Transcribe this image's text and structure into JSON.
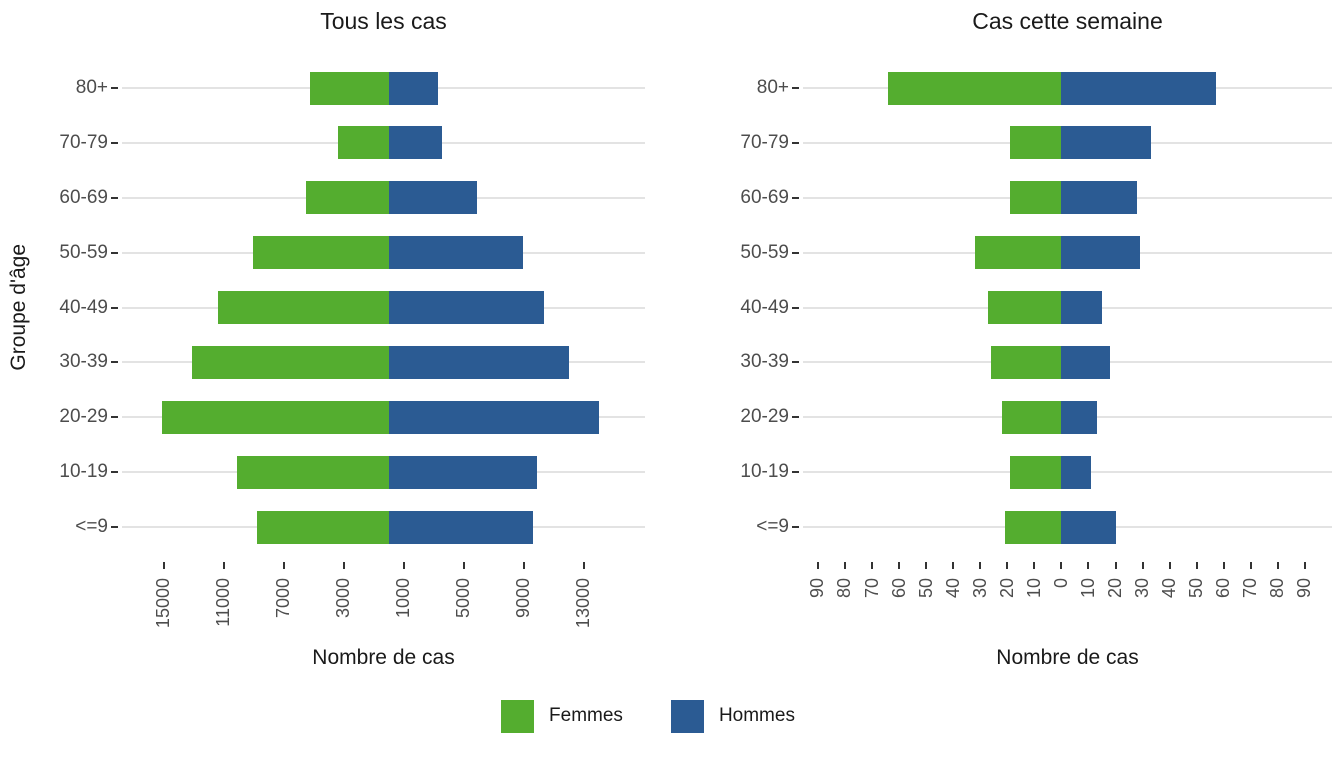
{
  "yaxis_title": "Groupe d'âge",
  "legend": {
    "items": [
      {
        "label": "Femmes",
        "color": "#54AD2F"
      },
      {
        "label": "Hommes",
        "color": "#2B5B93"
      }
    ]
  },
  "chart_data": [
    {
      "type": "bar",
      "subtype": "population-pyramid-horizontal",
      "title": "Tous les cas",
      "xlabel": "Nombre de cas",
      "ylabel": "Groupe d'âge",
      "grid": "horizontal-major-only",
      "legend_position": "bottom-shared",
      "categories": [
        "80+",
        "70-79",
        "60-69",
        "50-59",
        "40-49",
        "30-39",
        "20-29",
        "10-19",
        "<=9"
      ],
      "series": [
        {
          "name": "Femmes",
          "side": "left",
          "color": "#54AD2F",
          "values": [
            5250,
            3400,
            5500,
            9050,
            11400,
            13150,
            15150,
            10150,
            8800
          ]
        },
        {
          "name": "Hommes",
          "side": "right",
          "color": "#2B5B93",
          "values": [
            3300,
            3550,
            5900,
            8950,
            10350,
            12000,
            14050,
            9900,
            9600
          ]
        }
      ],
      "xlim": [
        -17800,
        17100
      ],
      "x_ticks": [
        {
          "value": -15000,
          "label": "15000"
        },
        {
          "value": -11000,
          "label": "11000"
        },
        {
          "value": -7000,
          "label": "7000"
        },
        {
          "value": -3000,
          "label": "3000"
        },
        {
          "value": 1000,
          "label": "1000"
        },
        {
          "value": 5000,
          "label": "5000"
        },
        {
          "value": 9000,
          "label": "9000"
        },
        {
          "value": 13000,
          "label": "13000"
        }
      ]
    },
    {
      "type": "bar",
      "subtype": "population-pyramid-horizontal",
      "title": "Cas cette semaine",
      "xlabel": "Nombre de cas",
      "ylabel": "Groupe d'âge",
      "grid": "horizontal-major-only",
      "legend_position": "bottom-shared",
      "categories": [
        "80+",
        "70-79",
        "60-69",
        "50-59",
        "40-49",
        "30-39",
        "20-29",
        "10-19",
        "<=9"
      ],
      "series": [
        {
          "name": "Femmes",
          "side": "left",
          "color": "#54AD2F",
          "values": [
            64,
            19,
            19,
            32,
            27,
            26,
            22,
            19,
            21
          ]
        },
        {
          "name": "Hommes",
          "side": "right",
          "color": "#2B5B93",
          "values": [
            57,
            33,
            28,
            29,
            15,
            18,
            13,
            11,
            20
          ]
        }
      ],
      "xlim": [
        -95.5,
        100
      ],
      "x_ticks": [
        {
          "value": -90,
          "label": "90"
        },
        {
          "value": -80,
          "label": "80"
        },
        {
          "value": -70,
          "label": "70"
        },
        {
          "value": -60,
          "label": "60"
        },
        {
          "value": -50,
          "label": "50"
        },
        {
          "value": -40,
          "label": "40"
        },
        {
          "value": -30,
          "label": "30"
        },
        {
          "value": -20,
          "label": "20"
        },
        {
          "value": -10,
          "label": "10"
        },
        {
          "value": 0,
          "label": "0"
        },
        {
          "value": 10,
          "label": "10"
        },
        {
          "value": 20,
          "label": "20"
        },
        {
          "value": 30,
          "label": "30"
        },
        {
          "value": 40,
          "label": "40"
        },
        {
          "value": 50,
          "label": "50"
        },
        {
          "value": 60,
          "label": "60"
        },
        {
          "value": 70,
          "label": "70"
        },
        {
          "value": 80,
          "label": "80"
        },
        {
          "value": 90,
          "label": "90"
        }
      ]
    }
  ]
}
